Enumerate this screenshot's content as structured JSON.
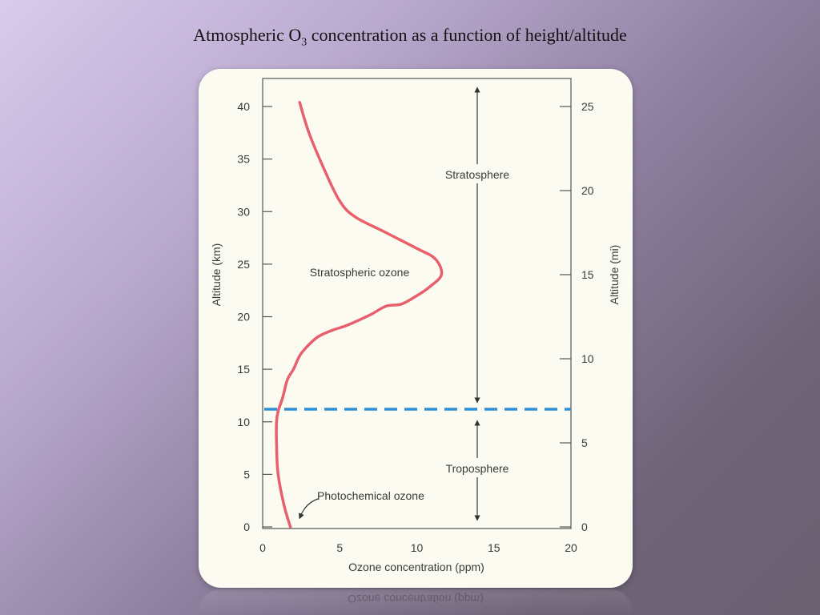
{
  "slide": {
    "title_prefix": "Atmospheric O",
    "title_sub": "3",
    "title_suffix": " concentration as a function of height/altitude"
  },
  "chart_data": {
    "type": "line",
    "title": "",
    "xlabel": "Ozone concentration (ppm)",
    "ylabel": "Altitude (km)",
    "y2label": "Altitude (mi)",
    "xlim": [
      0,
      20
    ],
    "ylim": [
      0,
      40
    ],
    "y2lim": [
      0,
      25
    ],
    "xticks": [
      0,
      5,
      10,
      15,
      20
    ],
    "yticks": [
      0,
      5,
      10,
      15,
      20,
      25,
      30,
      35,
      40
    ],
    "y2ticks": [
      0,
      5,
      10,
      15,
      20,
      25
    ],
    "grid": false,
    "series": [
      {
        "color": "#e8606e",
        "points": [
          [
            1.8,
            0
          ],
          [
            1.4,
            2
          ],
          [
            1.0,
            5
          ],
          [
            0.9,
            8
          ],
          [
            0.9,
            10
          ],
          [
            1.0,
            11
          ],
          [
            1.3,
            12.3
          ],
          [
            1.6,
            14
          ],
          [
            2.0,
            15
          ],
          [
            2.5,
            16.5
          ],
          [
            3.5,
            18
          ],
          [
            4.5,
            18.7
          ],
          [
            5.5,
            19.2
          ],
          [
            7.0,
            20.2
          ],
          [
            8.0,
            21.0
          ],
          [
            9.0,
            21.2
          ],
          [
            10.0,
            22.0
          ],
          [
            10.8,
            22.8
          ],
          [
            11.6,
            24
          ],
          [
            11.2,
            25.5
          ],
          [
            10.0,
            26.5
          ],
          [
            8.0,
            28.0
          ],
          [
            6.0,
            29.5
          ],
          [
            5.0,
            31.0
          ],
          [
            4.0,
            34.0
          ],
          [
            3.0,
            37.5
          ],
          [
            2.4,
            40.4
          ]
        ]
      }
    ],
    "tropopause_km": 11.2,
    "tropopause_color": "#2e8fd6",
    "annotations": {
      "stratosphere": "Stratosphere",
      "troposphere": "Troposphere",
      "stratospheric_ozone": "Stratospheric ozone",
      "photochemical_ozone": "Photochemical ozone"
    }
  }
}
